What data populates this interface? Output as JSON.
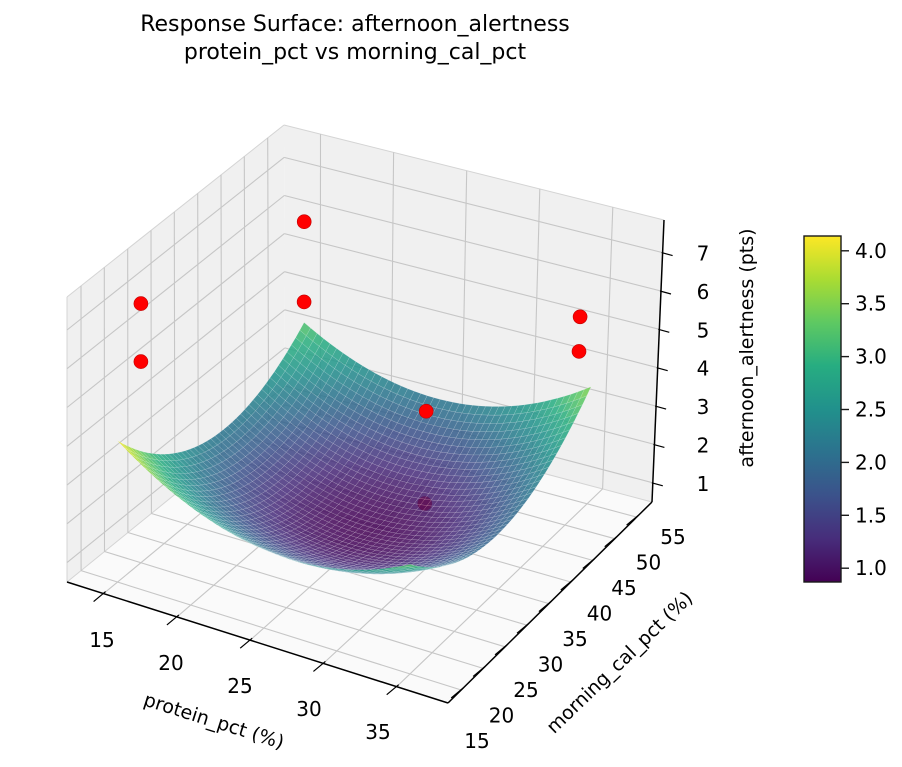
{
  "figure": {
    "background": "#ffffff"
  },
  "chart_data": {
    "type": "surface3d",
    "title": {
      "line1": "Response Surface: afternoon_alertness",
      "line2": "protein_pct vs morning_cal_pct"
    },
    "axes": {
      "x": {
        "label": "protein_pct (%)",
        "ticks": [
          15,
          20,
          25,
          30,
          35
        ],
        "lim": [
          12.5,
          38.5
        ]
      },
      "y": {
        "label": "morning_cal_pct (%)",
        "ticks": [
          15,
          20,
          25,
          30,
          35,
          40,
          45,
          50,
          55
        ],
        "lim": [
          12,
          58.5
        ]
      },
      "z": {
        "label": "afternoon_alertness (pts)",
        "ticks": [
          1,
          2,
          3,
          4,
          5,
          6,
          7
        ],
        "lim": [
          0.5,
          7.85
        ]
      }
    },
    "surface": {
      "x_range": [
        15,
        35
      ],
      "y_range": [
        15,
        55
      ],
      "grid_n": 44,
      "model": {
        "base": 0.87,
        "x0": 25.5,
        "y0": 36,
        "coef_x2": 0.0121,
        "coef_y2": 0.0037,
        "coef_xy": 0.0014
      },
      "colormap": "viridis",
      "alpha": 0.86,
      "cmap_range": [
        0.87,
        4.14
      ],
      "colormap_stops": [
        "#440154",
        "#472d7b",
        "#3b528b",
        "#2c728e",
        "#21918c",
        "#27ad81",
        "#5ec962",
        "#aadc32",
        "#fde725"
      ]
    },
    "scatter": {
      "name": "observations",
      "color": "#ff0000",
      "edge_color": "#c00000",
      "points": [
        {
          "x": 15,
          "y": 20,
          "z": 7.2
        },
        {
          "x": 15,
          "y": 20,
          "z": 5.7
        },
        {
          "x": 15,
          "y": 55,
          "z": 5.9
        },
        {
          "x": 15,
          "y": 55,
          "z": 3.8
        },
        {
          "x": 35,
          "y": 52,
          "z": 5.7
        },
        {
          "x": 35,
          "y": 52,
          "z": 4.8
        },
        {
          "x": 27.5,
          "y": 42.5,
          "z": 3.5
        },
        {
          "x": 27.5,
          "y": 42.5,
          "z": 1.1,
          "behind_surface": true
        }
      ]
    },
    "colorbar": {
      "vmin": 0.87,
      "vmax": 4.14,
      "ticks": [
        1.0,
        1.5,
        2.0,
        2.5,
        3.0,
        3.5,
        4.0
      ]
    },
    "grid": true,
    "pane_color": "#f0f0f0",
    "floor_color": "#fafafa",
    "grid_color": "#c6c6c6",
    "axis_color": "#000000"
  }
}
